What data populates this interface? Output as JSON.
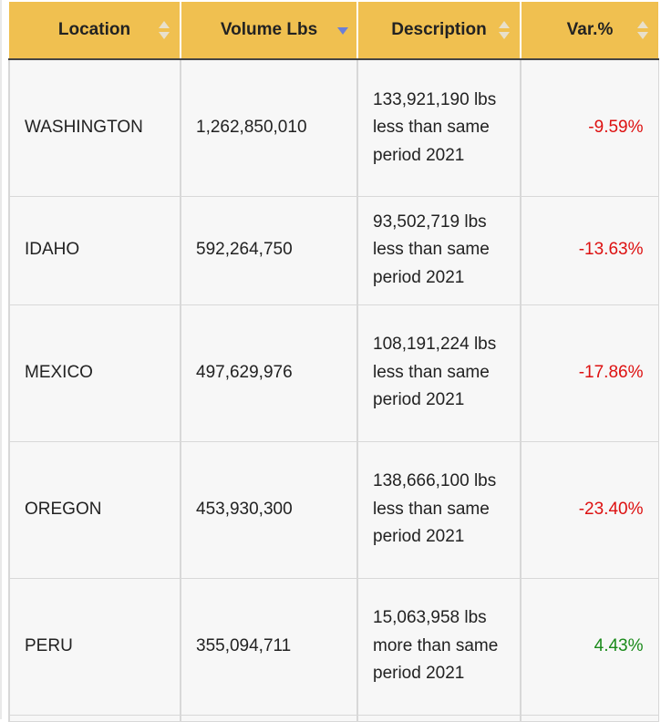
{
  "table": {
    "columns": [
      {
        "label": "Location",
        "sort": "none"
      },
      {
        "label": "Volume Lbs",
        "sort": "descending"
      },
      {
        "label": "Description",
        "sort": "none"
      },
      {
        "label": "Var.%",
        "sort": "none"
      }
    ],
    "rows": [
      {
        "location": "WASHINGTON",
        "volume": "1,262,850,010",
        "description": "133,921,190 lbs less than same period 2021",
        "var": "-9.59%",
        "trend": "negative"
      },
      {
        "location": "IDAHO",
        "volume": "592,264,750",
        "description": "93,502,719 lbs less than same period 2021",
        "var": "-13.63%",
        "trend": "negative"
      },
      {
        "location": "MEXICO",
        "volume": "497,629,976",
        "description": "108,191,224 lbs less than same period 2021",
        "var": "-17.86%",
        "trend": "negative"
      },
      {
        "location": "OREGON",
        "volume": "453,930,300",
        "description": "138,666,100 lbs less than same period 2021",
        "var": "-23.40%",
        "trend": "negative"
      },
      {
        "location": "PERU",
        "volume": "355,094,711",
        "description": "15,063,958 lbs more than same period 2021",
        "var": "4.43%",
        "trend": "positive"
      }
    ]
  },
  "colors": {
    "header_bg": "#f0c050",
    "negative": "#dd1111",
    "positive": "#1a8a1a",
    "sort_active": "#6b7fd6",
    "sort_idle": "#e8e0cc"
  },
  "icons": {
    "sort_both": "sort-both-icon",
    "sort_desc": "sort-descending-icon"
  }
}
